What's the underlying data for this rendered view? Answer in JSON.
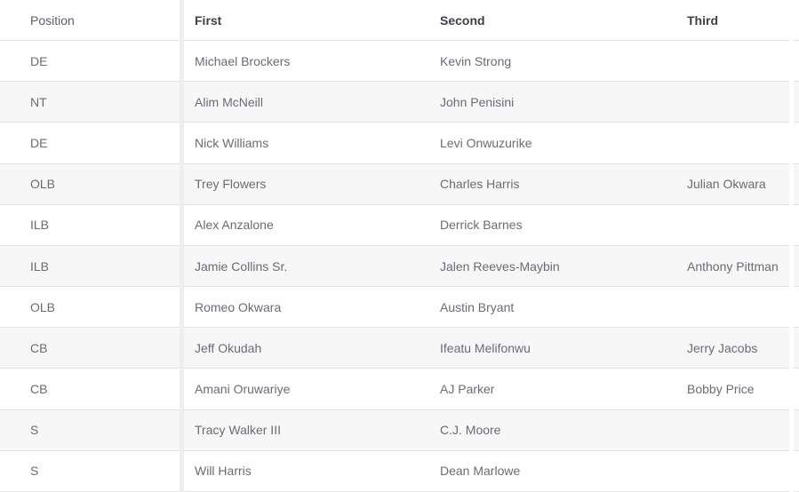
{
  "table": {
    "headers": {
      "position": "Position",
      "first": "First",
      "second": "Second",
      "third": "Third"
    },
    "rows": [
      {
        "position": "DE",
        "first": "Michael Brockers",
        "second": "Kevin Strong",
        "third": ""
      },
      {
        "position": "NT",
        "first": "Alim McNeill",
        "second": "John Penisini",
        "third": ""
      },
      {
        "position": "DE",
        "first": "Nick Williams",
        "second": "Levi Onwuzurike",
        "third": ""
      },
      {
        "position": "OLB",
        "first": "Trey Flowers",
        "second": "Charles Harris",
        "third": "Julian Okwara"
      },
      {
        "position": "ILB",
        "first": "Alex Anzalone",
        "second": "Derrick Barnes",
        "third": ""
      },
      {
        "position": "ILB",
        "first": "Jamie Collins Sr.",
        "second": "Jalen Reeves-Maybin",
        "third": "Anthony Pittman"
      },
      {
        "position": "OLB",
        "first": "Romeo Okwara",
        "second": "Austin Bryant",
        "third": ""
      },
      {
        "position": "CB",
        "first": "Jeff Okudah",
        "second": "Ifeatu Melifonwu",
        "third": "Jerry Jacobs"
      },
      {
        "position": "CB",
        "first": "Amani Oruwariye",
        "second": "AJ Parker",
        "third": "Bobby Price"
      },
      {
        "position": "S",
        "first": "Tracy Walker III",
        "second": "C.J. Moore",
        "third": ""
      },
      {
        "position": "S",
        "first": "Will Harris",
        "second": "Dean Marlowe",
        "third": ""
      }
    ]
  },
  "colors": {
    "stripe": "#f7f7f8",
    "border": "#e3e3e4",
    "gutter": "#eeeeee",
    "header_text": "#3f3f46",
    "body_text": "#6b6b74"
  }
}
